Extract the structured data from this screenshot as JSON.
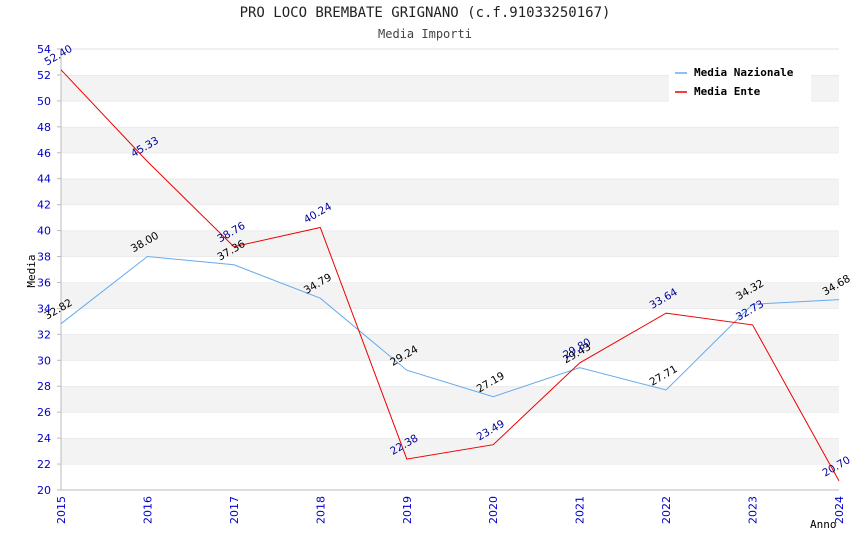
{
  "chart_data": {
    "type": "line",
    "title": "PRO LOCO BREMBATE GRIGNANO (c.f.91033250167)",
    "subtitle": "Media Importi",
    "xlabel": "Anno",
    "ylabel": "Media",
    "x": [
      "2015",
      "2016",
      "2017",
      "2018",
      "2019",
      "2020",
      "2021",
      "2022",
      "2023",
      "2024"
    ],
    "ylim": [
      20,
      54
    ],
    "yticks": [
      20,
      22,
      24,
      26,
      28,
      30,
      32,
      34,
      36,
      38,
      40,
      42,
      44,
      46,
      48,
      50,
      52,
      54
    ],
    "grid": "horizontal bands",
    "legend_position": "top-right",
    "series": [
      {
        "name": "Media Nazionale",
        "color": "#66aaee",
        "label_color": "#000000",
        "values": [
          32.82,
          38.0,
          37.36,
          34.79,
          29.24,
          27.19,
          29.43,
          27.71,
          34.32,
          34.68
        ],
        "labels": [
          "32.82",
          "38.00",
          "37.36",
          "34.79",
          "29.24",
          "27.19",
          "29.43",
          "27.71",
          "34.32",
          "34.68"
        ]
      },
      {
        "name": "Media Ente",
        "color": "#ee0000",
        "label_color": "#000099",
        "values": [
          52.4,
          45.33,
          38.76,
          40.24,
          22.38,
          23.49,
          29.8,
          33.64,
          32.73,
          20.7
        ],
        "labels": [
          "52.40",
          "45.33",
          "38.76",
          "40.24",
          "22.38",
          "23.49",
          "29.80",
          "33.64",
          "32.73",
          "20.70"
        ]
      }
    ]
  }
}
